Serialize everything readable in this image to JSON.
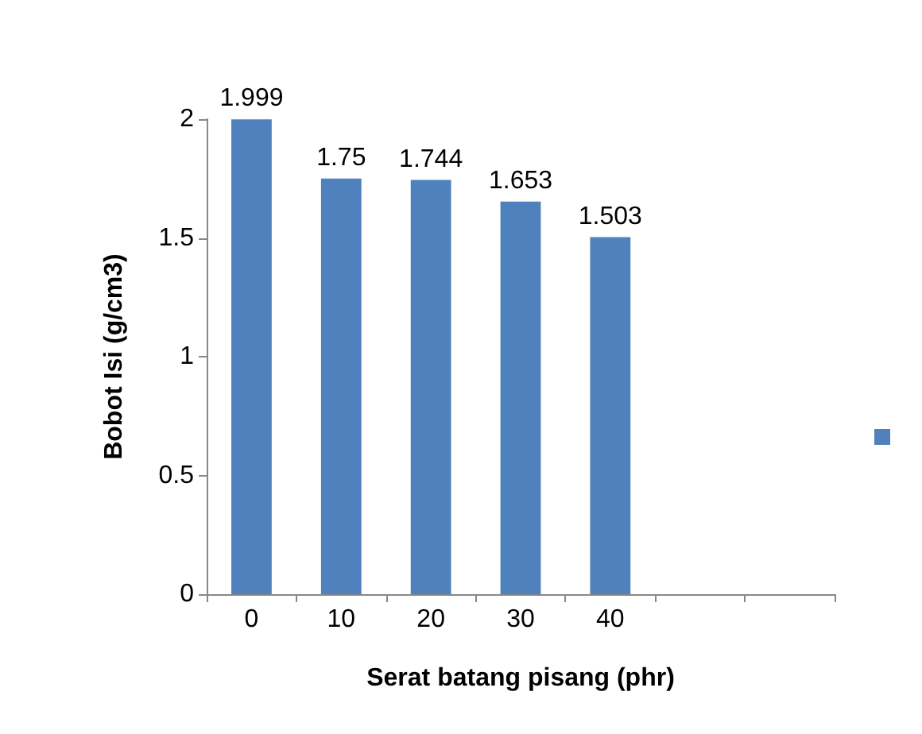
{
  "chart_data": {
    "type": "bar",
    "xlabel": "Serat batang pisang (phr)",
    "ylabel": "Bobot Isi (g/cm3)",
    "categories": [
      "0",
      "10",
      "20",
      "30",
      "40",
      null,
      null
    ],
    "series": [
      {
        "color": "#4f81bd",
        "values": [
          1.999,
          1.75,
          1.744,
          1.653,
          1.503,
          null,
          null
        ]
      }
    ],
    "ylim": [
      0,
      2
    ],
    "yticks": [
      0,
      0.5,
      1,
      1.5,
      2
    ],
    "grid": false,
    "data_labels": true
  }
}
